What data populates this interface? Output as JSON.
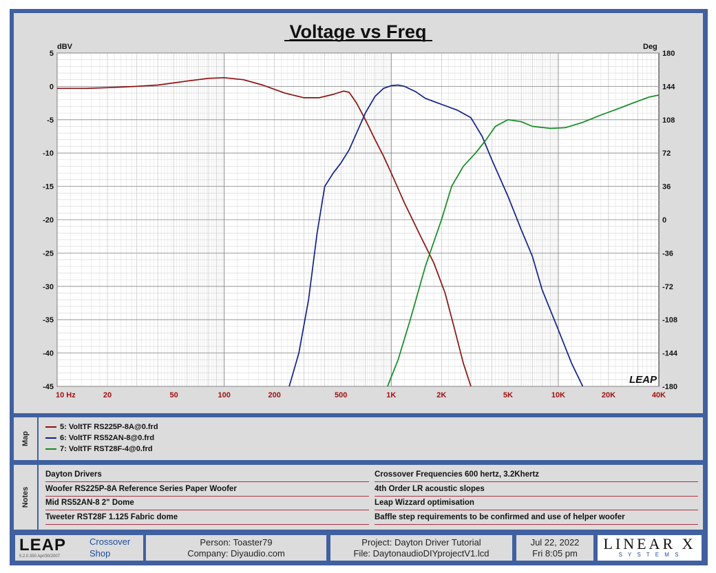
{
  "chart_data": {
    "type": "line",
    "title": "Voltage vs Freq",
    "ylabel_left": "dBV",
    "ylabel_right": "Deg",
    "x_scale": "log",
    "xlim": [
      10,
      40000
    ],
    "ylim": [
      -45,
      5
    ],
    "ylim_right": [
      -180,
      180
    ],
    "x_ticks": [
      {
        "value": 10,
        "label": "10  Hz"
      },
      {
        "value": 20,
        "label": "20"
      },
      {
        "value": 50,
        "label": "50"
      },
      {
        "value": 100,
        "label": "100"
      },
      {
        "value": 200,
        "label": "200"
      },
      {
        "value": 500,
        "label": "500"
      },
      {
        "value": 1000,
        "label": "1K"
      },
      {
        "value": 2000,
        "label": "2K"
      },
      {
        "value": 5000,
        "label": "5K"
      },
      {
        "value": 10000,
        "label": "10K"
      },
      {
        "value": 20000,
        "label": "20K"
      },
      {
        "value": 40000,
        "label": "40K"
      }
    ],
    "y_ticks": [
      5,
      0,
      -5,
      -10,
      -15,
      -20,
      -25,
      -30,
      -35,
      -40,
      -45
    ],
    "y_tick_labels": [
      "5",
      "0",
      "-5",
      "-10",
      "-15",
      "-20",
      "-25",
      "-30",
      "-35",
      "-40",
      "-45"
    ],
    "y_right_ticks": [
      180,
      144,
      108,
      72,
      36,
      0,
      -36,
      -72,
      -108,
      -144,
      -180
    ],
    "y_right_tick_labels": [
      "180",
      "144",
      "108",
      "72",
      "36",
      "0",
      "-36",
      "-72",
      "-108",
      "-144",
      "-180"
    ],
    "grid": true,
    "watermark": "LEAP",
    "series": [
      {
        "name": "5: VoltTF  RS225P-8A@0.frd",
        "color": "#8b1010",
        "points": [
          [
            10,
            -0.3
          ],
          [
            15,
            -0.3
          ],
          [
            20,
            -0.2
          ],
          [
            30,
            0
          ],
          [
            40,
            0.2
          ],
          [
            60,
            0.8
          ],
          [
            80,
            1.2
          ],
          [
            100,
            1.3
          ],
          [
            130,
            1.0
          ],
          [
            170,
            0.2
          ],
          [
            230,
            -1.0
          ],
          [
            300,
            -1.7
          ],
          [
            370,
            -1.7
          ],
          [
            450,
            -1.2
          ],
          [
            520,
            -0.7
          ],
          [
            560,
            -0.9
          ],
          [
            620,
            -2.5
          ],
          [
            700,
            -5.0
          ],
          [
            800,
            -8.0
          ],
          [
            900,
            -10.5
          ],
          [
            1000,
            -13.0
          ],
          [
            1200,
            -17.5
          ],
          [
            1500,
            -22.5
          ],
          [
            1800,
            -26.5
          ],
          [
            2100,
            -31.0
          ],
          [
            2400,
            -36.5
          ],
          [
            2700,
            -41.5
          ],
          [
            3000,
            -45.0
          ]
        ]
      },
      {
        "name": "6: VoltTF  RS52AN-8@0.frd",
        "color": "#10208b",
        "points": [
          [
            245,
            -45
          ],
          [
            280,
            -40
          ],
          [
            320,
            -32
          ],
          [
            360,
            -22
          ],
          [
            400,
            -15
          ],
          [
            450,
            -13
          ],
          [
            500,
            -11.5
          ],
          [
            560,
            -9.5
          ],
          [
            620,
            -7
          ],
          [
            700,
            -4
          ],
          [
            800,
            -1.5
          ],
          [
            900,
            -0.3
          ],
          [
            1000,
            0.1
          ],
          [
            1100,
            0.2
          ],
          [
            1200,
            0
          ],
          [
            1400,
            -0.8
          ],
          [
            1600,
            -1.8
          ],
          [
            2000,
            -2.7
          ],
          [
            2500,
            -3.6
          ],
          [
            3000,
            -4.7
          ],
          [
            3500,
            -7.5
          ],
          [
            4000,
            -11.0
          ],
          [
            5000,
            -16.5
          ],
          [
            6000,
            -21.5
          ],
          [
            7000,
            -25.5
          ],
          [
            8000,
            -30.5
          ],
          [
            10000,
            -36.5
          ],
          [
            12000,
            -41.5
          ],
          [
            14000,
            -45.0
          ]
        ]
      },
      {
        "name": "7: VoltTF  RST28F-4@0.frd",
        "color": "#108b20",
        "points": [
          [
            950,
            -45
          ],
          [
            1100,
            -41
          ],
          [
            1300,
            -35
          ],
          [
            1600,
            -27
          ],
          [
            2000,
            -20
          ],
          [
            2300,
            -15
          ],
          [
            2700,
            -12
          ],
          [
            3200,
            -10
          ],
          [
            3700,
            -8
          ],
          [
            4200,
            -6
          ],
          [
            5000,
            -5
          ],
          [
            6000,
            -5.3
          ],
          [
            7000,
            -6
          ],
          [
            9000,
            -6.3
          ],
          [
            11000,
            -6.2
          ],
          [
            14000,
            -5.4
          ],
          [
            18000,
            -4.3
          ],
          [
            22000,
            -3.5
          ],
          [
            28000,
            -2.5
          ],
          [
            35000,
            -1.6
          ],
          [
            40000,
            -1.3
          ]
        ]
      }
    ]
  },
  "map": {
    "label": "Map"
  },
  "notes": {
    "label": "Notes",
    "left": [
      "Dayton Drivers",
      "Woofer RS225P-8A Reference Series Paper Woofer",
      "Mid RS52AN-8 2\" Dome",
      "Tweeter RST28F 1.125 Fabric dome"
    ],
    "right": [
      "Crossover Frequencies 600 hertz, 3.2Khertz",
      "4th Order LR acoustic slopes",
      "Leap Wizzard optimisation",
      "Baffle step requirements to be confirmed and use of helper woofer"
    ]
  },
  "footer": {
    "logo": "LEAP",
    "version": "5.2.0.350   Apr/30/2007",
    "product_line1": "Crossover",
    "product_line2": "Shop",
    "person": "Person: Toaster79",
    "company": "Company: Diyaudio.com",
    "project": "Project: Dayton Driver Tutorial",
    "file": "File: DaytonaudioDIYprojectV1.lcd",
    "date": "Jul 22, 2022",
    "time": "Fri  8:05 pm",
    "brand_line1": "LINEAR X",
    "brand_line2": "S Y S T E M S"
  }
}
